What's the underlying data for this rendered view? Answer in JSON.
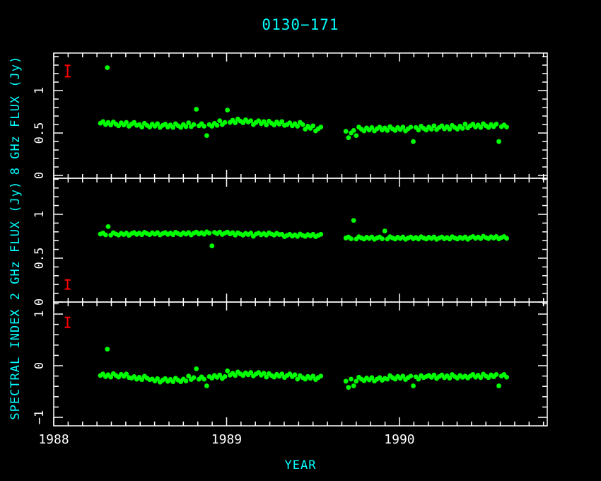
{
  "figure": {
    "title": "0130−171",
    "xlabel": "YEAR",
    "background_color": "#000000",
    "frame_color": "#ffffff",
    "title_color": "#00ffff",
    "label_color": "#00ffff",
    "tick_label_color": "#ffffff",
    "point_color": "#00ff00",
    "error_bar_color": "#ff0000"
  },
  "chart_data": {
    "type": "scatter",
    "title": "0130−171",
    "xlabel": "YEAR",
    "x_axis": {
      "lim": [
        1988.0,
        1990.855
      ],
      "major_ticks": [
        1988,
        1989,
        1990
      ],
      "major_labels": [
        "1988",
        "1989",
        "1990"
      ],
      "minor_step": 0.0833333
    },
    "panels": [
      {
        "name": "8ghz-flux",
        "ylabel": "8 GHz FLUX (Jy)",
        "ylim": [
          -0.033,
          1.442
        ],
        "major_ticks": [
          0,
          0.5,
          1
        ],
        "major_labels": [
          "0",
          "0.5",
          "1"
        ],
        "minor_step": 0.1,
        "error_bar": {
          "year": 1988.08,
          "value": 1.23,
          "half_height": 0.067
        },
        "series": {
          "name": "8 GHz flux (Jy)",
          "color": "#00ff00",
          "segments": [
            {
              "x0": 1988.27,
              "dx": 0.015,
              "values": [
                0.615,
                0.635,
                0.6,
                0.625,
                0.595,
                0.63,
                0.605,
                0.585,
                0.62,
                0.595,
                0.625,
                0.58,
                0.605,
                0.625,
                0.59,
                0.6,
                0.57,
                0.615,
                0.59,
                0.57,
                0.605,
                0.58,
                0.61,
                0.565,
                0.59,
                0.605,
                0.57,
                0.595,
                0.565,
                0.61,
                0.585,
                0.565,
                0.6,
                0.575,
                0.62,
                0.575,
                0.6,
                0.78,
                0.585,
                0.61,
                0.58,
                0.47,
                0.6,
                0.58,
                0.615,
                0.59,
                0.645,
                0.6,
                0.625,
                0.77,
                0.625,
                0.65,
                0.62,
                0.665,
                0.64,
                0.62,
                0.655,
                0.63,
                0.645,
                0.6,
                0.625,
                0.645,
                0.61,
                0.635,
                0.595,
                0.64,
                0.615,
                0.595,
                0.63,
                0.605,
                0.635,
                0.59,
                0.6,
                0.62,
                0.585,
                0.61,
                0.58,
                0.625,
                0.6,
                0.545,
                0.58,
                0.555,
                0.585,
                0.525,
                0.55,
                0.57
              ]
            },
            {
              "x0": 1989.69,
              "dx": 0.015,
              "values": [
                0.52,
                0.445,
                0.5,
                0.53,
                0.47,
                0.57,
                0.545,
                0.525,
                0.56,
                0.535,
                0.565,
                0.525,
                0.55,
                0.57,
                0.535,
                0.56,
                0.53,
                0.575,
                0.55,
                0.53,
                0.565,
                0.54,
                0.57,
                0.525,
                0.55,
                0.57,
                0.4,
                0.565,
                0.535,
                0.58,
                0.555,
                0.535,
                0.57,
                0.545,
                0.585,
                0.54,
                0.565,
                0.585,
                0.55,
                0.575,
                0.545,
                0.59,
                0.565,
                0.545,
                0.58,
                0.555,
                0.605,
                0.56,
                0.585,
                0.605,
                0.57,
                0.595,
                0.565,
                0.61,
                0.585,
                0.565,
                0.6,
                0.575,
                0.605,
                0.4,
                0.575,
                0.595,
                0.57
              ]
            }
          ],
          "extra_points": [
            [
              1988.31,
              1.27
            ]
          ]
        }
      },
      {
        "name": "2ghz-flux",
        "ylabel": "2 GHz FLUX (Jy)",
        "ylim": [
          0.0,
          1.411
        ],
        "major_ticks": [
          0,
          0.5,
          1
        ],
        "major_labels": [
          "0",
          "0.5",
          "1"
        ],
        "minor_step": 0.1,
        "error_bar": {
          "year": 1988.08,
          "value": 0.2,
          "half_height": 0.052
        },
        "series": {
          "name": "2 GHz flux (Jy)",
          "color": "#00ff00",
          "segments": [
            {
              "x0": 1988.27,
              "dx": 0.015,
              "values": [
                0.775,
                0.787,
                0.766,
                0.86,
                0.763,
                0.79,
                0.775,
                0.763,
                0.784,
                0.769,
                0.787,
                0.76,
                0.78,
                0.792,
                0.771,
                0.786,
                0.768,
                0.795,
                0.78,
                0.768,
                0.789,
                0.774,
                0.792,
                0.765,
                0.78,
                0.792,
                0.771,
                0.786,
                0.768,
                0.795,
                0.78,
                0.768,
                0.789,
                0.774,
                0.792,
                0.765,
                0.785,
                0.797,
                0.776,
                0.791,
                0.773,
                0.8,
                0.785,
                0.64,
                0.794,
                0.779,
                0.797,
                0.77,
                0.785,
                0.797,
                0.776,
                0.791,
                0.763,
                0.79,
                0.775,
                0.763,
                0.784,
                0.769,
                0.787,
                0.75,
                0.775,
                0.787,
                0.766,
                0.781,
                0.763,
                0.79,
                0.775,
                0.763,
                0.784,
                0.769,
                0.772,
                0.745,
                0.76,
                0.772,
                0.751,
                0.766,
                0.748,
                0.775,
                0.76,
                0.748,
                0.769,
                0.754,
                0.772,
                0.745,
                0.76,
                0.772
              ]
            },
            {
              "x0": 1989.69,
              "dx": 0.015,
              "values": [
                0.73,
                0.742,
                0.721,
                0.93,
                0.718,
                0.745,
                0.73,
                0.718,
                0.739,
                0.724,
                0.742,
                0.715,
                0.73,
                0.742,
                0.721,
                0.81,
                0.718,
                0.745,
                0.73,
                0.718,
                0.739,
                0.724,
                0.742,
                0.715,
                0.73,
                0.742,
                0.721,
                0.736,
                0.718,
                0.745,
                0.73,
                0.718,
                0.739,
                0.724,
                0.742,
                0.715,
                0.73,
                0.742,
                0.721,
                0.736,
                0.718,
                0.745,
                0.73,
                0.718,
                0.739,
                0.724,
                0.742,
                0.715,
                0.735,
                0.747,
                0.726,
                0.741,
                0.723,
                0.75,
                0.735,
                0.723,
                0.744,
                0.729,
                0.747,
                0.72,
                0.735,
                0.747,
                0.726
              ]
            }
          ],
          "extra_points": []
        }
      },
      {
        "name": "spectral-index",
        "ylabel": "SPECTRAL INDEX",
        "ylim": [
          -1.164,
          1.233
        ],
        "major_ticks": [
          -1,
          0,
          1
        ],
        "major_labels": [
          "−1",
          "0",
          "1"
        ],
        "minor_step": 0.2,
        "error_bar": {
          "year": 1988.08,
          "value": 0.84,
          "half_height": 0.096
        },
        "series": {
          "name": "spectral index",
          "color": "#00ff00",
          "segments": [
            {
              "x0": 1988.27,
              "dx": 0.015,
              "values": [
                -0.19,
                -0.16,
                -0.212,
                -0.175,
                -0.22,
                -0.152,
                -0.19,
                -0.22,
                -0.168,
                -0.205,
                -0.16,
                -0.228,
                -0.24,
                -0.21,
                -0.262,
                -0.225,
                -0.27,
                -0.202,
                -0.24,
                -0.27,
                -0.258,
                -0.295,
                -0.25,
                -0.318,
                -0.28,
                -0.25,
                -0.302,
                -0.265,
                -0.31,
                -0.242,
                -0.28,
                -0.31,
                -0.258,
                -0.295,
                -0.2,
                -0.268,
                -0.23,
                -0.06,
                -0.262,
                -0.215,
                -0.26,
                -0.39,
                -0.21,
                -0.24,
                -0.188,
                -0.225,
                -0.18,
                -0.248,
                -0.21,
                -0.1,
                -0.182,
                -0.145,
                -0.19,
                -0.122,
                -0.16,
                -0.19,
                -0.138,
                -0.175,
                -0.13,
                -0.198,
                -0.16,
                -0.13,
                -0.182,
                -0.145,
                -0.22,
                -0.152,
                -0.19,
                -0.22,
                -0.168,
                -0.205,
                -0.16,
                -0.228,
                -0.19,
                -0.16,
                -0.212,
                -0.175,
                -0.26,
                -0.192,
                -0.23,
                -0.26,
                -0.208,
                -0.245,
                -0.2,
                -0.268,
                -0.23,
                -0.2
              ]
            },
            {
              "x0": 1989.69,
              "dx": 0.015,
              "values": [
                -0.3,
                -0.42,
                -0.26,
                -0.39,
                -0.3,
                -0.222,
                -0.26,
                -0.29,
                -0.238,
                -0.275,
                -0.23,
                -0.298,
                -0.26,
                -0.23,
                -0.282,
                -0.245,
                -0.26,
                -0.192,
                -0.23,
                -0.26,
                -0.208,
                -0.245,
                -0.2,
                -0.268,
                -0.23,
                -0.2,
                -0.39,
                -0.215,
                -0.26,
                -0.192,
                -0.23,
                -0.21,
                -0.188,
                -0.225,
                -0.18,
                -0.248,
                -0.21,
                -0.18,
                -0.232,
                -0.195,
                -0.24,
                -0.172,
                -0.21,
                -0.24,
                -0.188,
                -0.225,
                -0.2,
                -0.238,
                -0.2,
                -0.17,
                -0.222,
                -0.185,
                -0.23,
                -0.162,
                -0.2,
                -0.23,
                -0.178,
                -0.215,
                -0.17,
                -0.39,
                -0.2,
                -0.17,
                -0.222
              ]
            }
          ],
          "extra_points": [
            [
              1988.31,
              0.32
            ]
          ]
        }
      }
    ]
  }
}
